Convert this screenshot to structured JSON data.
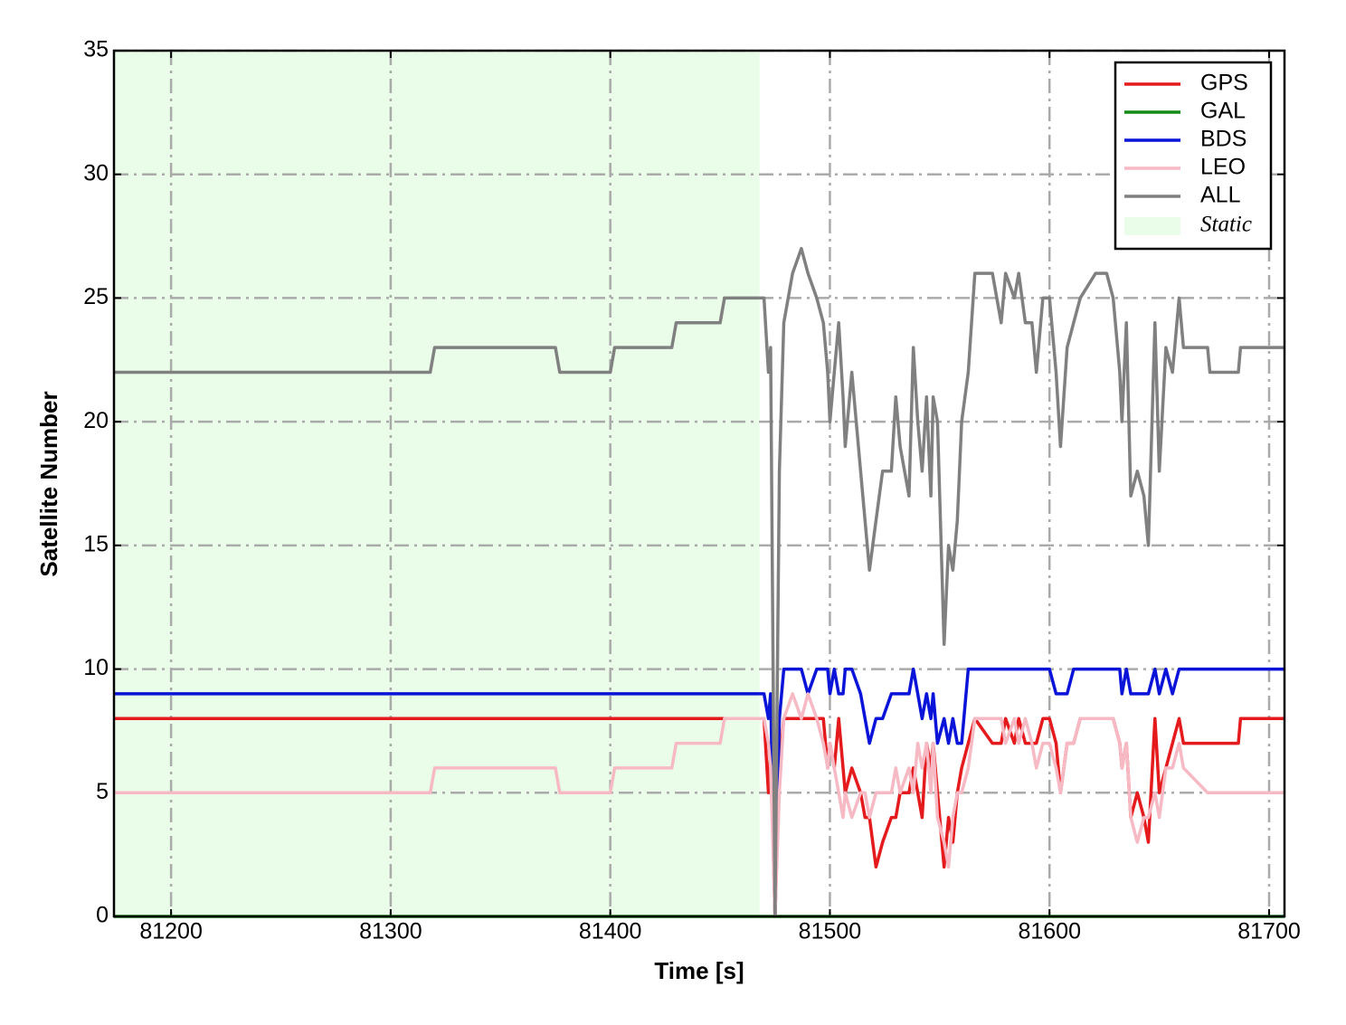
{
  "chart_data": {
    "type": "line",
    "xlabel": "Time [s]",
    "ylabel": "Satellite Number",
    "x": [
      81174,
      81318,
      81320,
      81375,
      81377,
      81400,
      81402,
      81428,
      81430,
      81450,
      81452,
      81470,
      81472,
      81473,
      81475,
      81477,
      81479,
      81483,
      81487,
      81490,
      81494,
      81497,
      81499,
      81500,
      81502,
      81504,
      81506,
      81507,
      81510,
      81514,
      81516,
      81518,
      81521,
      81524,
      81528,
      81530,
      81532,
      81536,
      81538,
      81540,
      81542,
      81544,
      81546,
      81547,
      81549,
      81552,
      81554,
      81556,
      81558,
      81560,
      81563,
      81566,
      81574,
      81578,
      81580,
      81584,
      81586,
      81589,
      81592,
      81594,
      81597,
      81600,
      81603,
      81605,
      81608,
      81611,
      81614,
      81621,
      81626,
      81629,
      81632,
      81633,
      81635,
      81637,
      81640,
      81643,
      81645,
      81648,
      81650,
      81653,
      81656,
      81659,
      81661,
      81672,
      81673,
      81686,
      81687,
      81707
    ],
    "series": [
      {
        "name": "GPS",
        "color": "#e41a1c",
        "values": [
          8,
          8,
          8,
          8,
          8,
          8,
          8,
          8,
          8,
          8,
          8,
          8,
          5,
          7,
          0,
          6,
          8,
          8,
          8,
          8,
          8,
          8,
          6,
          7,
          6,
          8,
          6,
          5,
          6,
          5,
          4,
          4,
          2,
          3,
          4,
          4,
          5,
          5,
          6,
          5,
          4,
          7,
          6,
          7,
          5,
          2,
          4,
          3,
          5,
          6,
          7,
          8,
          7,
          7,
          8,
          7,
          8,
          7,
          7,
          7,
          8,
          8,
          7,
          5,
          7,
          7,
          8,
          8,
          8,
          8,
          7,
          6,
          7,
          4,
          5,
          4,
          3,
          8,
          5,
          6,
          7,
          8,
          7,
          7,
          7,
          7,
          8,
          8
        ]
      },
      {
        "name": "GAL",
        "color": "#138a13",
        "values": [
          0,
          0,
          0,
          0,
          0,
          0,
          0,
          0,
          0,
          0,
          0,
          0,
          0,
          0,
          0,
          0,
          0,
          0,
          0,
          0,
          0,
          0,
          0,
          0,
          0,
          0,
          0,
          0,
          0,
          0,
          0,
          0,
          0,
          0,
          0,
          0,
          0,
          0,
          0,
          0,
          0,
          0,
          0,
          0,
          0,
          0,
          0,
          0,
          0,
          0,
          0,
          0,
          0,
          0,
          0,
          0,
          0,
          0,
          0,
          0,
          0,
          0,
          0,
          0,
          0,
          0,
          0,
          0,
          0,
          0,
          0,
          0,
          0,
          0,
          0,
          0,
          0,
          0,
          0,
          0,
          0,
          0,
          0,
          0,
          0,
          0,
          0,
          0
        ]
      },
      {
        "name": "BDS",
        "color": "#0a14d8",
        "values": [
          9,
          9,
          9,
          9,
          9,
          9,
          9,
          9,
          9,
          9,
          9,
          9,
          8,
          9,
          0,
          8,
          10,
          10,
          10,
          9,
          10,
          10,
          10,
          9,
          10,
          9,
          9,
          10,
          10,
          9,
          8,
          7,
          8,
          8,
          9,
          9,
          9,
          9,
          10,
          9,
          8,
          9,
          8,
          9,
          7,
          8,
          7,
          8,
          7,
          7,
          10,
          10,
          10,
          10,
          10,
          10,
          10,
          10,
          10,
          10,
          10,
          10,
          9,
          9,
          9,
          10,
          10,
          10,
          10,
          10,
          10,
          9,
          10,
          9,
          9,
          9,
          9,
          10,
          9,
          10,
          9,
          10,
          10,
          10,
          10,
          10,
          10,
          10
        ]
      },
      {
        "name": "LEO",
        "color": "#f7b9c4",
        "values": [
          5,
          5,
          6,
          6,
          5,
          5,
          6,
          6,
          7,
          7,
          8,
          8,
          7,
          6,
          0,
          5,
          8,
          9,
          8,
          9,
          8,
          7,
          6,
          7,
          6,
          5,
          4,
          5,
          4,
          5,
          5,
          4,
          5,
          5,
          5,
          6,
          5,
          6,
          5,
          7,
          6,
          7,
          5,
          7,
          4,
          3,
          2,
          4,
          5,
          5,
          6,
          8,
          8,
          8,
          7,
          8,
          7,
          8,
          7,
          6,
          7,
          7,
          6,
          5,
          7,
          7,
          8,
          8,
          8,
          8,
          7,
          6,
          7,
          4,
          3,
          4,
          4,
          5,
          4,
          6,
          6,
          7,
          6,
          5,
          5,
          5,
          5,
          5
        ]
      },
      {
        "name": "ALL",
        "color": "#808080",
        "values": [
          22,
          22,
          23,
          23,
          22,
          22,
          23,
          23,
          24,
          24,
          25,
          25,
          22,
          23,
          0,
          18,
          24,
          26,
          27,
          26,
          25,
          24,
          22,
          20,
          22,
          24,
          21,
          19,
          22,
          18,
          16,
          14,
          16,
          18,
          18,
          21,
          19,
          17,
          23,
          20,
          18,
          21,
          17,
          21,
          20,
          11,
          15,
          14,
          16,
          20,
          22,
          26,
          26,
          24,
          26,
          25,
          26,
          24,
          24,
          22,
          25,
          25,
          22,
          19,
          23,
          24,
          25,
          26,
          26,
          25,
          22,
          20,
          24,
          17,
          18,
          17,
          15,
          24,
          18,
          23,
          22,
          25,
          23,
          23,
          22,
          22,
          23,
          23
        ]
      }
    ],
    "span": {
      "name": "Static",
      "color": "#eafde8",
      "x": [
        81174,
        81468
      ]
    },
    "xlim": [
      81174,
      81707
    ],
    "xticks": [
      81200,
      81300,
      81400,
      81500,
      81600,
      81700
    ],
    "ylim": [
      0,
      35
    ],
    "yticks": [
      0,
      5,
      10,
      15,
      20,
      25,
      30,
      35
    ],
    "grid": true,
    "legend": "upper right"
  }
}
